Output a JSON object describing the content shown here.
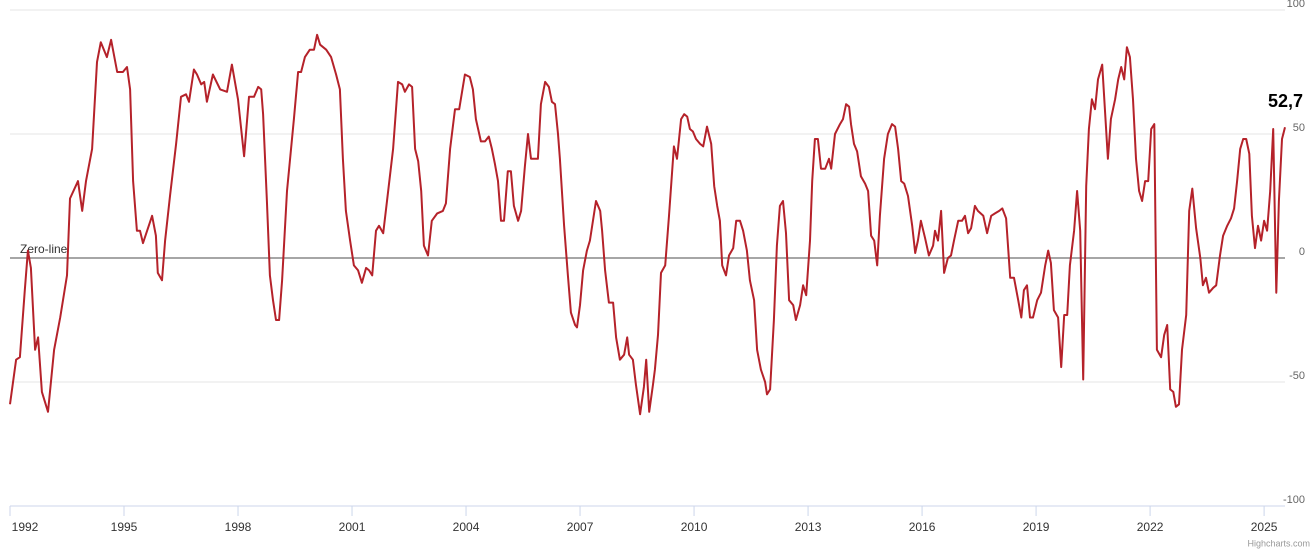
{
  "chart_data": {
    "type": "line",
    "zero_line_label": "Zero-line",
    "last_value_label": "52,7",
    "credits": "Highcharts.com",
    "xlim": [
      1992,
      2025.55
    ],
    "xticks": [
      1992,
      1995,
      1998,
      2001,
      2004,
      2007,
      2010,
      2013,
      2016,
      2019,
      2022,
      2025
    ],
    "ylim": [
      -100,
      100
    ],
    "yticks": [
      -100,
      -50,
      0,
      50,
      100
    ],
    "grid": true,
    "x": [
      1992.0,
      1992.16,
      1992.26,
      1992.39,
      1992.47,
      1992.55,
      1992.66,
      1992.74,
      1992.84,
      1993.0,
      1993.16,
      1993.32,
      1993.5,
      1993.58,
      1993.79,
      1993.9,
      1994.0,
      1994.16,
      1994.29,
      1994.39,
      1994.55,
      1994.66,
      1994.82,
      1994.97,
      1995.08,
      1995.16,
      1995.24,
      1995.34,
      1995.42,
      1995.5,
      1995.74,
      1995.84,
      1995.89,
      1996.0,
      1996.08,
      1996.21,
      1996.37,
      1996.5,
      1996.63,
      1996.71,
      1996.84,
      1996.92,
      1997.03,
      1997.11,
      1997.18,
      1997.34,
      1997.53,
      1997.71,
      1997.84,
      1998.0,
      1998.16,
      1998.29,
      1998.42,
      1998.53,
      1998.61,
      1998.66,
      1998.76,
      1998.84,
      1998.92,
      1999.0,
      1999.08,
      1999.16,
      1999.29,
      1999.47,
      1999.58,
      1999.66,
      1999.76,
      1999.89,
      2000.0,
      2000.08,
      2000.16,
      2000.32,
      2000.45,
      2000.58,
      2000.68,
      2000.76,
      2000.84,
      2000.95,
      2001.05,
      2001.16,
      2001.26,
      2001.37,
      2001.45,
      2001.53,
      2001.63,
      2001.71,
      2001.82,
      2001.92,
      2002.08,
      2002.21,
      2002.32,
      2002.39,
      2002.5,
      2002.58,
      2002.66,
      2002.74,
      2002.82,
      2002.89,
      2003.0,
      2003.1,
      2003.24,
      2003.39,
      2003.47,
      2003.58,
      2003.71,
      2003.82,
      2003.97,
      2004.1,
      2004.18,
      2004.26,
      2004.39,
      2004.5,
      2004.6,
      2004.68,
      2004.76,
      2004.84,
      2004.92,
      2005.0,
      2005.1,
      2005.18,
      2005.26,
      2005.37,
      2005.45,
      2005.55,
      2005.63,
      2005.71,
      2005.79,
      2005.89,
      2005.97,
      2006.08,
      2006.18,
      2006.26,
      2006.34,
      2006.42,
      2006.47,
      2006.58,
      2006.68,
      2006.76,
      2006.87,
      2006.92,
      2007.0,
      2007.08,
      2007.18,
      2007.26,
      2007.42,
      2007.53,
      2007.58,
      2007.66,
      2007.76,
      2007.87,
      2007.95,
      2008.05,
      2008.16,
      2008.24,
      2008.29,
      2008.39,
      2008.47,
      2008.58,
      2008.68,
      2008.74,
      2008.82,
      2008.92,
      2008.97,
      2009.05,
      2009.13,
      2009.24,
      2009.34,
      2009.47,
      2009.55,
      2009.66,
      2009.74,
      2009.82,
      2009.89,
      2009.97,
      2010.05,
      2010.16,
      2010.24,
      2010.34,
      2010.45,
      2010.53,
      2010.61,
      2010.68,
      2010.74,
      2010.84,
      2010.92,
      2011.03,
      2011.11,
      2011.21,
      2011.29,
      2011.39,
      2011.47,
      2011.58,
      2011.66,
      2011.76,
      2011.87,
      2011.92,
      2012.0,
      2012.1,
      2012.18,
      2012.26,
      2012.34,
      2012.42,
      2012.5,
      2012.61,
      2012.68,
      2012.79,
      2012.87,
      2012.95,
      2013.05,
      2013.11,
      2013.18,
      2013.26,
      2013.34,
      2013.45,
      2013.55,
      2013.61,
      2013.71,
      2013.84,
      2013.92,
      2014.0,
      2014.08,
      2014.13,
      2014.21,
      2014.29,
      2014.39,
      2014.5,
      2014.58,
      2014.66,
      2014.74,
      2014.82,
      2014.89,
      2015.0,
      2015.1,
      2015.21,
      2015.29,
      2015.37,
      2015.45,
      2015.53,
      2015.63,
      2015.74,
      2015.82,
      2015.89,
      2015.97,
      2016.08,
      2016.18,
      2016.29,
      2016.34,
      2016.42,
      2016.5,
      2016.58,
      2016.68,
      2016.76,
      2016.84,
      2016.95,
      2017.05,
      2017.13,
      2017.21,
      2017.29,
      2017.39,
      2017.47,
      2017.61,
      2017.71,
      2017.82,
      2017.92,
      2018.03,
      2018.11,
      2018.21,
      2018.32,
      2018.42,
      2018.53,
      2018.61,
      2018.68,
      2018.76,
      2018.84,
      2018.92,
      2019.03,
      2019.13,
      2019.24,
      2019.32,
      2019.39,
      2019.47,
      2019.58,
      2019.66,
      2019.74,
      2019.82,
      2019.89,
      2020.0,
      2020.08,
      2020.16,
      2020.24,
      2020.32,
      2020.39,
      2020.47,
      2020.55,
      2020.63,
      2020.74,
      2020.82,
      2020.89,
      2020.97,
      2021.08,
      2021.16,
      2021.24,
      2021.32,
      2021.39,
      2021.47,
      2021.55,
      2021.63,
      2021.71,
      2021.79,
      2021.87,
      2021.95,
      2022.03,
      2022.11,
      2022.18,
      2022.29,
      2022.37,
      2022.45,
      2022.53,
      2022.61,
      2022.68,
      2022.76,
      2022.84,
      2022.95,
      2023.03,
      2023.11,
      2023.21,
      2023.32,
      2023.39,
      2023.47,
      2023.55,
      2023.66,
      2023.74,
      2023.84,
      2023.92,
      2024.03,
      2024.13,
      2024.21,
      2024.29,
      2024.37,
      2024.45,
      2024.53,
      2024.61,
      2024.68,
      2024.76,
      2024.84,
      2024.92,
      2025.0,
      2025.08,
      2025.16,
      2025.24,
      2025.32,
      2025.39,
      2025.47,
      2025.55
    ],
    "series": [
      {
        "color": "#b5222a",
        "values": [
          -59,
          -41,
          -40,
          -13,
          3,
          -4,
          -37,
          -32,
          -54,
          -62,
          -37,
          -24,
          -7,
          24,
          31,
          19,
          31,
          44,
          79,
          87,
          81,
          88,
          75,
          75,
          77,
          68,
          31,
          11,
          11,
          6,
          17,
          9,
          -6,
          -9,
          7,
          25,
          46,
          65,
          66,
          63,
          76,
          74,
          70,
          71,
          63,
          74,
          68,
          67,
          78,
          64,
          41,
          65,
          65,
          69,
          68,
          58,
          23,
          -7,
          -17,
          -25,
          -25,
          -9,
          27,
          56,
          75,
          75,
          81,
          84,
          84,
          90,
          86,
          84,
          81,
          74,
          68,
          40,
          19,
          7,
          -3,
          -5,
          -10,
          -4,
          -5,
          -7,
          11,
          13,
          10,
          23,
          44,
          71,
          70,
          67,
          70,
          69,
          44,
          39,
          27,
          5,
          1,
          15,
          18,
          19,
          22,
          44,
          60,
          60,
          74,
          73,
          68,
          56,
          47,
          47,
          49,
          44,
          38,
          31,
          15,
          15,
          35,
          35,
          21,
          15,
          19,
          37,
          50,
          40,
          40,
          40,
          62,
          71,
          69,
          63,
          62,
          50,
          40,
          13,
          -7,
          -22,
          -27,
          -28,
          -19,
          -5,
          3,
          7,
          23,
          19,
          11,
          -5,
          -18,
          -18,
          -32,
          -41,
          -39,
          -32,
          -39,
          -41,
          -51,
          -63,
          -52,
          -41,
          -62,
          -51,
          -45,
          -31,
          -6,
          -3,
          17,
          45,
          40,
          56,
          58,
          57,
          52,
          51,
          48,
          46,
          45,
          53,
          46,
          29,
          21,
          15,
          -3,
          -7,
          1,
          4,
          15,
          15,
          11,
          3,
          -9,
          -17,
          -37,
          -45,
          -50,
          -55,
          -53,
          -25,
          5,
          21,
          23,
          10,
          -17,
          -19,
          -25,
          -19,
          -11,
          -15,
          7,
          31,
          48,
          48,
          36,
          36,
          40,
          36,
          50,
          54,
          56,
          62,
          61,
          54,
          46,
          43,
          33,
          30,
          27,
          9,
          7,
          -3,
          17,
          40,
          50,
          54,
          53,
          44,
          31,
          30,
          25,
          13,
          2,
          7,
          15,
          8,
          1,
          5,
          11,
          7,
          19,
          -6,
          0,
          1,
          7,
          15,
          15,
          17,
          10,
          12,
          21,
          19,
          17,
          10,
          17,
          18,
          19,
          20,
          16,
          -8,
          -8,
          -17,
          -24,
          -13,
          -11,
          -24,
          -24,
          -17,
          -14,
          -3,
          3,
          -2,
          -21,
          -24,
          -44,
          -23,
          -23,
          -3,
          11,
          27,
          11,
          -49,
          29,
          52,
          64,
          60,
          72,
          78,
          58,
          40,
          56,
          64,
          72,
          77,
          72,
          85,
          81,
          64,
          40,
          27,
          23,
          31,
          31,
          52,
          54,
          -37,
          -40,
          -31,
          -27,
          -53,
          -54,
          -60,
          -59,
          -37,
          -23,
          19,
          28,
          12,
          0,
          -11,
          -8,
          -14,
          -12,
          -11,
          1,
          9,
          13,
          16,
          20,
          31,
          44,
          48,
          48,
          42,
          17,
          4,
          13,
          7,
          15,
          11,
          27,
          52,
          -14,
          23,
          48,
          52.7
        ]
      }
    ]
  }
}
